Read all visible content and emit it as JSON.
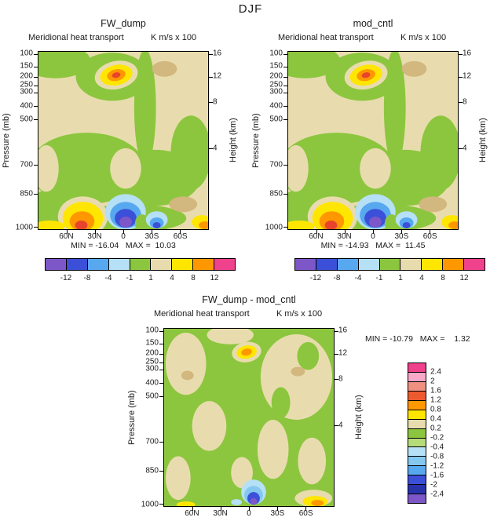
{
  "season_title": "DJF",
  "panels": [
    {
      "title": "FW_dump",
      "subtitle": "Meridional heat transport",
      "units": "K m/s x 100",
      "ylabel": "Pressure (mb)",
      "ylabel_right": "Height (km)",
      "minmax": "MIN = -16.04   MAX =  10.03"
    },
    {
      "title": "mod_cntl",
      "subtitle": "Meridional heat transport",
      "units": "K m/s x 100",
      "ylabel": "Pressure (mb)",
      "ylabel_right": "Height (km)",
      "minmax": "MIN = -14.93   MAX =  11.45"
    },
    {
      "title": "FW_dump - mod_cntl",
      "subtitle": "Meridional heat transport",
      "units": "K m/s x 100",
      "ylabel": "Pressure (mb)",
      "ylabel_right": "Height (km)",
      "minmax": "MIN = -10.79   MAX =    1.32"
    }
  ],
  "axes": {
    "pressure_ticks": [
      {
        "label": "100",
        "pos": 0.015
      },
      {
        "label": "150",
        "pos": 0.085
      },
      {
        "label": "200",
        "pos": 0.14
      },
      {
        "label": "250",
        "pos": 0.19
      },
      {
        "label": "300",
        "pos": 0.228
      },
      {
        "label": "400",
        "pos": 0.305
      },
      {
        "label": "500",
        "pos": 0.38
      },
      {
        "label": "700",
        "pos": 0.635
      },
      {
        "label": "850",
        "pos": 0.8
      },
      {
        "label": "1000",
        "pos": 0.985
      }
    ],
    "height_ticks": [
      {
        "label": "16",
        "pos": 0.015
      },
      {
        "label": "12",
        "pos": 0.14
      },
      {
        "label": "8",
        "pos": 0.285
      },
      {
        "label": "4",
        "pos": 0.545
      }
    ],
    "lat_ticks": [
      {
        "label": "60N",
        "pos": 0.167
      },
      {
        "label": "30N",
        "pos": 0.333
      },
      {
        "label": "0",
        "pos": 0.5
      },
      {
        "label": "30S",
        "pos": 0.667
      },
      {
        "label": "60S",
        "pos": 0.833
      }
    ]
  },
  "colorbar_top": {
    "labels": [
      "-12",
      "-8",
      "-4",
      "-1",
      "1",
      "4",
      "8",
      "12"
    ],
    "colors": [
      "#7d57c8",
      "#3b4fd8",
      "#58a8f0",
      "#b5e0f5",
      "#8cc63e",
      "#e8dcae",
      "#ffe600",
      "#ff9800",
      "#f0418c"
    ]
  },
  "colorbar_diff": {
    "labels": [
      "2.4",
      "2",
      "1.6",
      "1.2",
      "0.8",
      "0.4",
      "0.2",
      "-0.2",
      "-0.4",
      "-0.8",
      "-1.2",
      "-1.6",
      "-2",
      "-2.4"
    ],
    "colors": [
      "#f0418c",
      "#f8a8c8",
      "#ef9080",
      "#ee5a30",
      "#ff9800",
      "#ffe600",
      "#e8dcae",
      "#8cc63e",
      "#b6dc7a",
      "#b5e0f5",
      "#84c8f0",
      "#58a8f0",
      "#3b4fd8",
      "#2832aa",
      "#7d57c8"
    ]
  },
  "extra_colors": {
    "dark_tan": "#d2b77e",
    "warm_core": "#e8432c"
  },
  "chart_data": [
    {
      "type": "contour",
      "season": "DJF",
      "title": "FW_dump",
      "subtitle": "Meridional heat transport",
      "units": "K m/s x 100",
      "x_axis_ticks": [
        "60N",
        "30N",
        "0",
        "30S",
        "60S"
      ],
      "y_axis_left_label": "Pressure (mb)",
      "y_axis_left_ticks_mb": [
        100,
        150,
        200,
        250,
        300,
        400,
        500,
        700,
        850,
        1000
      ],
      "y_axis_right_label": "Height (km)",
      "y_axis_right_ticks_km": [
        16,
        12,
        8,
        4
      ],
      "contour_levels": [
        -12,
        -8,
        -4,
        -1,
        1,
        4,
        8,
        12
      ],
      "min": -16.04,
      "max": 10.03,
      "colorbar_position": "bottom",
      "notes": "Filled contour latitude-pressure section; positive maximum near 200 mb just north of equator, negative minimum (blue/purple) near surface just south of equator, warm cell near surface around 30-40N."
    },
    {
      "type": "contour",
      "season": "DJF",
      "title": "mod_cntl",
      "subtitle": "Meridional heat transport",
      "units": "K m/s x 100",
      "x_axis_ticks": [
        "60N",
        "30N",
        "0",
        "30S",
        "60S"
      ],
      "y_axis_left_label": "Pressure (mb)",
      "y_axis_left_ticks_mb": [
        100,
        150,
        200,
        250,
        300,
        400,
        500,
        700,
        850,
        1000
      ],
      "y_axis_right_label": "Height (km)",
      "y_axis_right_ticks_km": [
        16,
        12,
        8,
        4
      ],
      "contour_levels": [
        -12,
        -8,
        -4,
        -1,
        1,
        4,
        8,
        12
      ],
      "min": -14.93,
      "max": 11.45,
      "colorbar_position": "bottom",
      "notes": "Field nearly identical in structure to FW_dump panel."
    },
    {
      "type": "contour",
      "season": "DJF",
      "title": "FW_dump - mod_cntl",
      "subtitle": "Meridional heat transport",
      "units": "K m/s x 100",
      "x_axis_ticks": [
        "60N",
        "30N",
        "0",
        "30S",
        "60S"
      ],
      "y_axis_left_label": "Pressure (mb)",
      "y_axis_left_ticks_mb": [
        100,
        150,
        200,
        250,
        300,
        400,
        500,
        700,
        850,
        1000
      ],
      "y_axis_right_label": "Height (km)",
      "y_axis_right_ticks_km": [
        16,
        12,
        8,
        4
      ],
      "contour_levels": [
        -2.4,
        -2,
        -1.6,
        -1.2,
        -0.8,
        -0.4,
        -0.2,
        0.2,
        0.4,
        0.8,
        1.2,
        1.6,
        2,
        2.4
      ],
      "min": -10.79,
      "max": 1.32,
      "colorbar_position": "right",
      "notes": "Difference field mostly near zero (green) with tan patches; small warm anomaly near 200 mb at the equator and a deep negative (blue/purple) anomaly near the surface just south of the equator."
    }
  ]
}
